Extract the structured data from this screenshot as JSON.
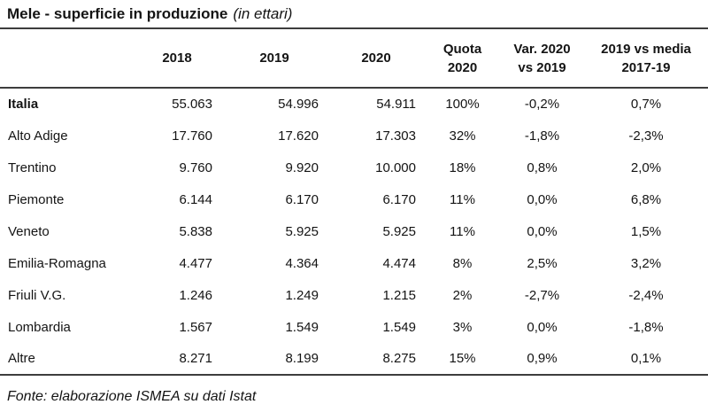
{
  "title": {
    "main": "Mele - superficie in produzione",
    "unit": "(in ettari)"
  },
  "table": {
    "headers": [
      {
        "line1": ""
      },
      {
        "line1": "2018"
      },
      {
        "line1": "2019"
      },
      {
        "line1": "2020"
      },
      {
        "line1": "Quota",
        "line2": "2020"
      },
      {
        "line1": "Var. 2020",
        "line2": "vs 2019"
      },
      {
        "line1": "2019 vs media",
        "line2": "2017-19"
      }
    ],
    "rows": [
      {
        "region": "Italia",
        "y2018": "55.063",
        "y2019": "54.996",
        "y2020": "54.911",
        "quota": "100%",
        "var": "-0,2%",
        "media": "0,7%"
      },
      {
        "region": "Alto Adige",
        "y2018": "17.760",
        "y2019": "17.620",
        "y2020": "17.303",
        "quota": "32%",
        "var": "-1,8%",
        "media": "-2,3%"
      },
      {
        "region": "Trentino",
        "y2018": "9.760",
        "y2019": "9.920",
        "y2020": "10.000",
        "quota": "18%",
        "var": "0,8%",
        "media": "2,0%"
      },
      {
        "region": "Piemonte",
        "y2018": "6.144",
        "y2019": "6.170",
        "y2020": "6.170",
        "quota": "11%",
        "var": "0,0%",
        "media": "6,8%"
      },
      {
        "region": "Veneto",
        "y2018": "5.838",
        "y2019": "5.925",
        "y2020": "5.925",
        "quota": "11%",
        "var": "0,0%",
        "media": "1,5%"
      },
      {
        "region": "Emilia-Romagna",
        "y2018": "4.477",
        "y2019": "4.364",
        "y2020": "4.474",
        "quota": "8%",
        "var": "2,5%",
        "media": "3,2%"
      },
      {
        "region": "Friuli V.G.",
        "y2018": "1.246",
        "y2019": "1.249",
        "y2020": "1.215",
        "quota": "2%",
        "var": "-2,7%",
        "media": "-2,4%"
      },
      {
        "region": "Lombardia",
        "y2018": "1.567",
        "y2019": "1.549",
        "y2020": "1.549",
        "quota": "3%",
        "var": "0,0%",
        "media": "-1,8%"
      },
      {
        "region": "Altre",
        "y2018": "8.271",
        "y2019": "8.199",
        "y2020": "8.275",
        "quota": "15%",
        "var": "0,9%",
        "media": "0,1%"
      }
    ]
  },
  "footer": {
    "source": "Fonte: elaborazione ISMEA su dati Istat"
  },
  "colors": {
    "text": "#141414",
    "rule": "#3d3d3d",
    "background": "#ffffff"
  },
  "chart_data": {
    "type": "table",
    "title": "Mele - superficie in produzione (in ettari)",
    "columns": [
      "",
      "2018",
      "2019",
      "2020",
      "Quota 2020",
      "Var. 2020 vs 2019",
      "2019 vs media 2017-19"
    ],
    "rows": [
      [
        "Italia",
        "55.063",
        "54.996",
        "54.911",
        "100%",
        "-0,2%",
        "0,7%"
      ],
      [
        "Alto Adige",
        "17.760",
        "17.620",
        "17.303",
        "32%",
        "-1,8%",
        "-2,3%"
      ],
      [
        "Trentino",
        "9.760",
        "9.920",
        "10.000",
        "18%",
        "0,8%",
        "2,0%"
      ],
      [
        "Piemonte",
        "6.144",
        "6.170",
        "6.170",
        "11%",
        "0,0%",
        "6,8%"
      ],
      [
        "Veneto",
        "5.838",
        "5.925",
        "5.925",
        "11%",
        "0,0%",
        "1,5%"
      ],
      [
        "Emilia-Romagna",
        "4.477",
        "4.364",
        "4.474",
        "8%",
        "2,5%",
        "3,2%"
      ],
      [
        "Friuli V.G.",
        "1.246",
        "1.249",
        "1.215",
        "2%",
        "-2,7%",
        "-2,4%"
      ],
      [
        "Lombardia",
        "1.567",
        "1.549",
        "1.549",
        "3%",
        "0,0%",
        "-1,8%"
      ],
      [
        "Altre",
        "8.271",
        "8.199",
        "8.275",
        "15%",
        "0,9%",
        "0,1%"
      ]
    ],
    "source": "Fonte: elaborazione ISMEA su dati Istat"
  }
}
